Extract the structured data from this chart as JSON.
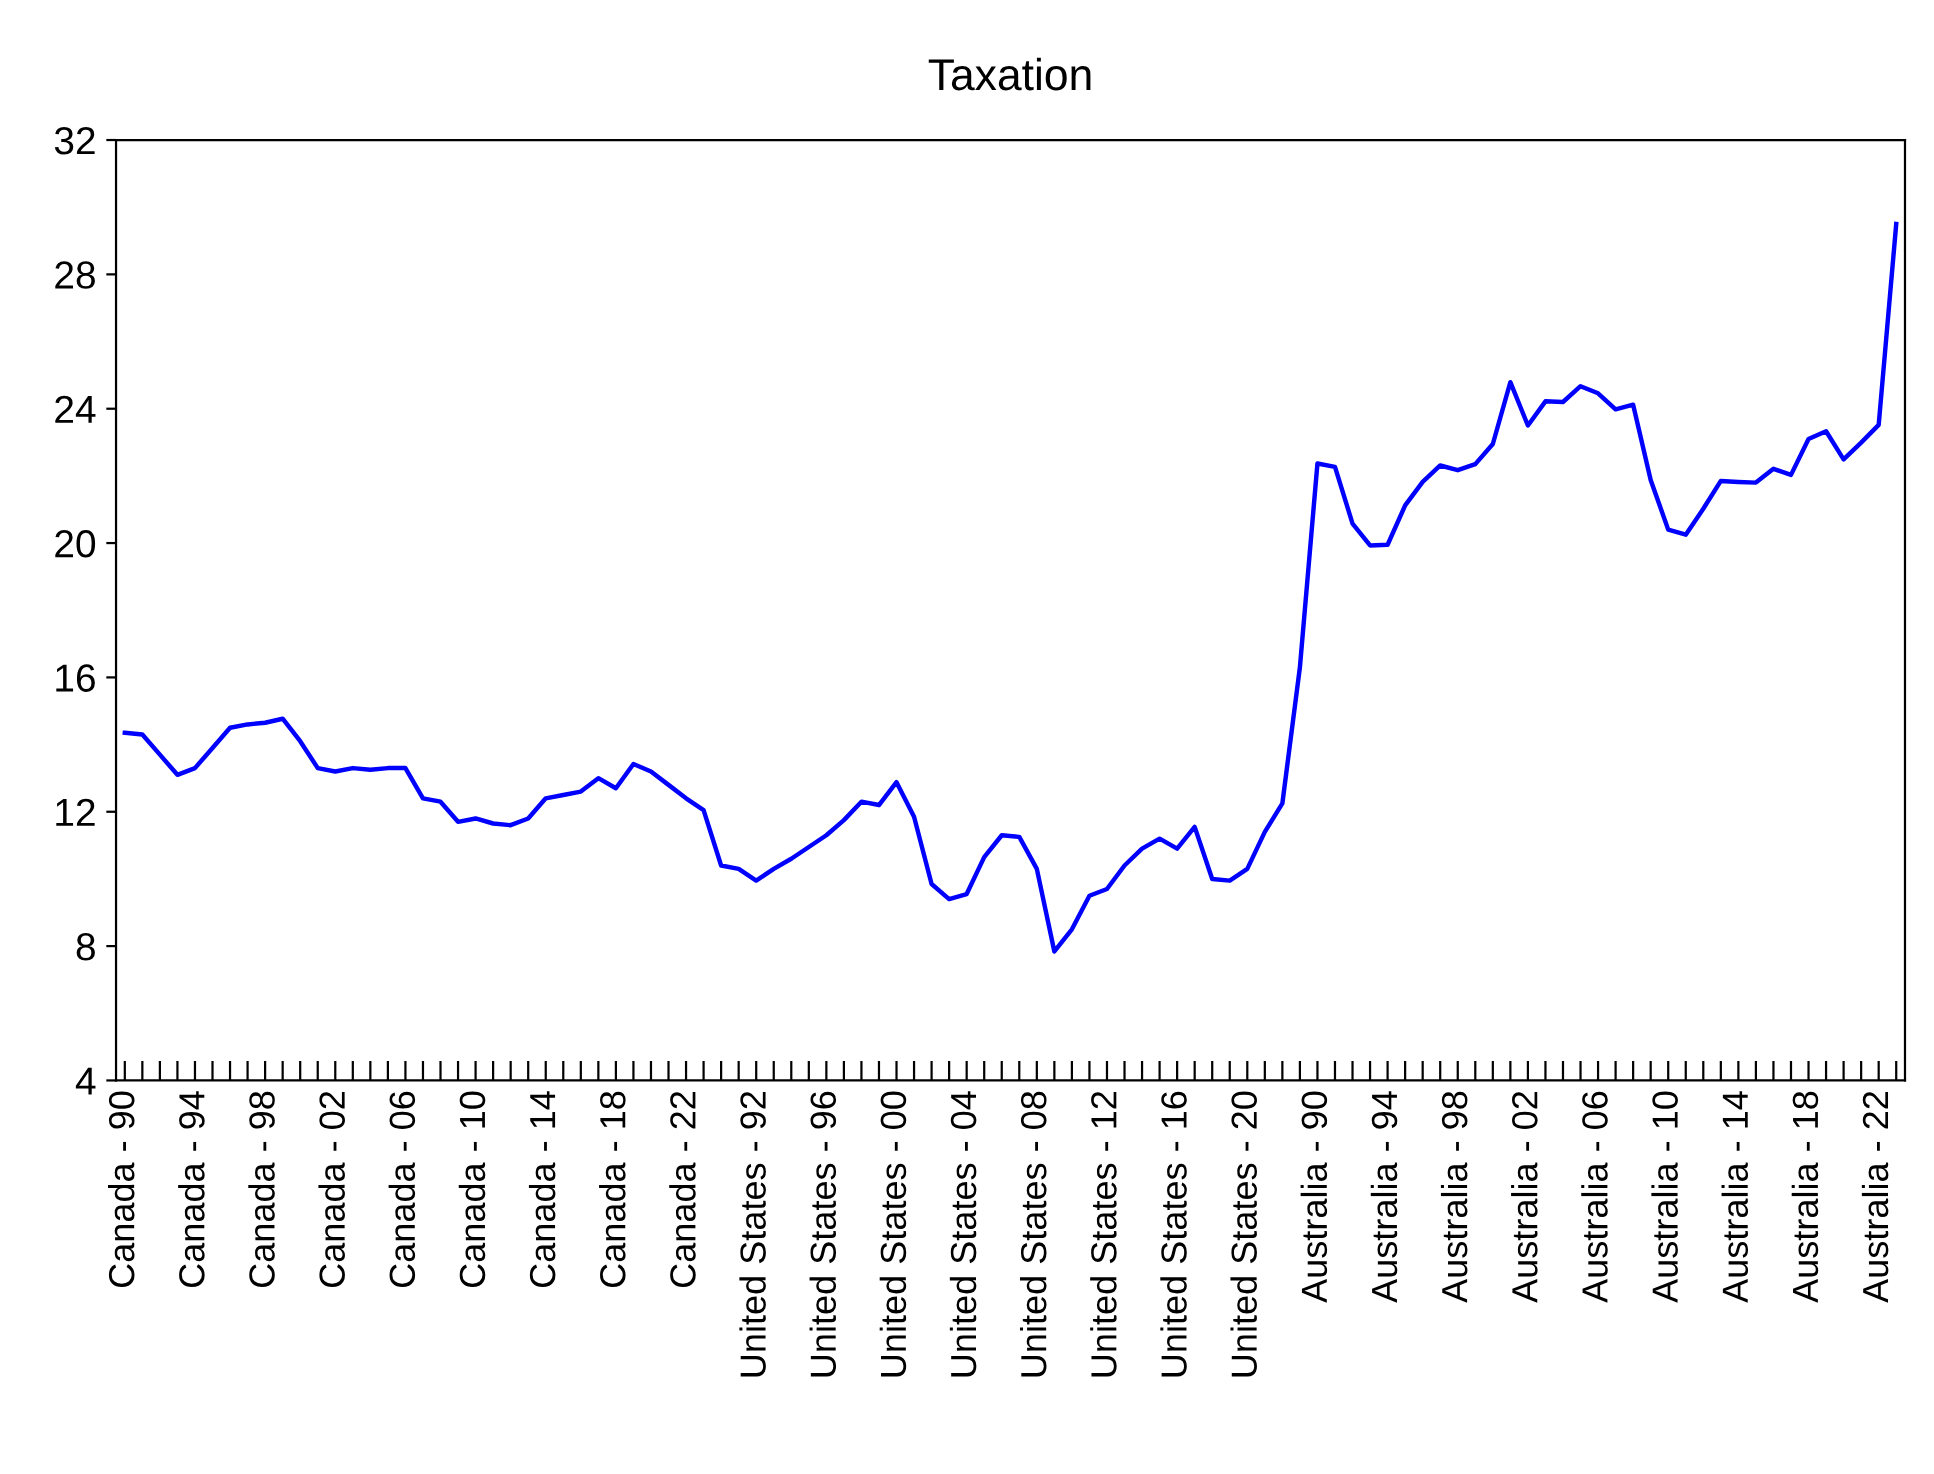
{
  "chart_data": {
    "type": "line",
    "title": "Taxation",
    "categories": [
      "Canada - 90",
      null,
      null,
      null,
      "Canada - 94",
      null,
      null,
      null,
      "Canada - 98",
      null,
      null,
      null,
      "Canada - 02",
      null,
      null,
      null,
      "Canada - 06",
      null,
      null,
      null,
      "Canada - 10",
      null,
      null,
      null,
      "Canada - 14",
      null,
      null,
      null,
      "Canada - 18",
      null,
      null,
      null,
      "Canada - 22",
      null,
      null,
      null,
      "United States - 92",
      null,
      null,
      null,
      "United States - 96",
      null,
      null,
      null,
      "United States - 00",
      null,
      null,
      null,
      "United States - 04",
      null,
      null,
      null,
      "United States - 08",
      null,
      null,
      null,
      "United States - 12",
      null,
      null,
      null,
      "United States - 16",
      null,
      null,
      null,
      "United States - 20",
      null,
      null,
      null,
      "Australia - 90",
      null,
      null,
      null,
      "Australia - 94",
      null,
      null,
      null,
      "Australia - 98",
      null,
      null,
      null,
      "Australia - 02",
      null,
      null,
      null,
      "Australia - 06",
      null,
      null,
      null,
      "Australia - 10",
      null,
      null,
      null,
      "Australia - 14",
      null,
      null,
      null,
      "Australia - 18",
      null,
      null,
      null,
      "Australia - 22",
      null
    ],
    "series": [
      {
        "color": "#0000ff",
        "values": [
          14.35,
          14.3,
          13.7,
          13.1,
          13.3,
          13.9,
          14.5,
          14.6,
          14.65,
          14.77,
          14.1,
          13.3,
          13.2,
          13.3,
          13.25,
          13.3,
          13.3,
          12.4,
          12.3,
          11.7,
          11.8,
          11.65,
          11.6,
          11.8,
          12.4,
          12.5,
          12.6,
          13.0,
          12.7,
          13.42,
          13.2,
          12.8,
          12.4,
          12.05,
          10.4,
          10.3,
          9.95,
          10.3,
          10.6,
          10.95,
          11.3,
          11.75,
          12.3,
          12.2,
          12.88,
          11.85,
          9.85,
          9.4,
          9.55,
          10.65,
          11.3,
          11.25,
          10.3,
          7.84,
          8.5,
          9.5,
          9.7,
          10.4,
          10.9,
          11.2,
          10.9,
          11.55,
          10.0,
          9.95,
          10.3,
          11.4,
          12.25,
          16.3,
          22.37,
          22.27,
          20.58,
          19.93,
          19.95,
          21.12,
          21.82,
          22.31,
          22.17,
          22.35,
          22.95,
          24.79,
          23.5,
          24.22,
          24.2,
          24.67,
          24.46,
          23.98,
          24.12,
          21.88,
          20.4,
          20.25,
          21.02,
          21.85,
          21.82,
          21.8,
          22.21,
          22.03,
          23.1,
          23.33,
          22.49,
          22.99,
          23.52,
          29.5
        ]
      }
    ],
    "ylim": [
      4,
      32
    ],
    "yticks": [
      4,
      8,
      12,
      16,
      20,
      24,
      28,
      32
    ],
    "grid": false,
    "marker": "none",
    "line_style": "solid"
  }
}
